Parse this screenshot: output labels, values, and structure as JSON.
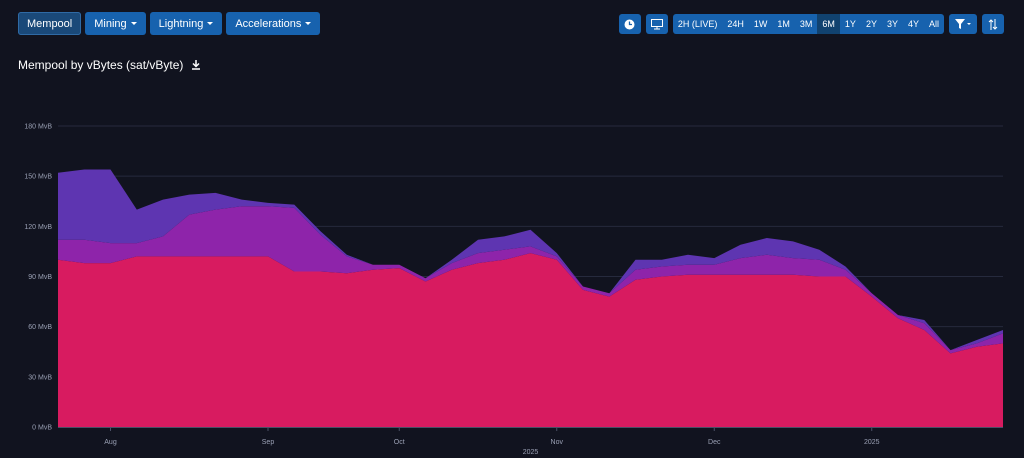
{
  "nav": {
    "items": [
      "Mempool",
      "Mining",
      "Lightning",
      "Accelerations"
    ],
    "active": "Mempool",
    "dropdowns": [
      "Mining",
      "Lightning",
      "Accelerations"
    ]
  },
  "toolbar": {
    "ranges": [
      "2H (LIVE)",
      "24H",
      "1W",
      "1M",
      "3M",
      "6M",
      "1Y",
      "2Y",
      "3Y",
      "4Y",
      "All"
    ],
    "active_range": "6M"
  },
  "chart_data": {
    "type": "stacked-area",
    "title": "Mempool by vBytes (sat/vByte)",
    "categories": [
      null,
      null,
      "Aug",
      null,
      null,
      null,
      null,
      null,
      "Sep",
      null,
      null,
      null,
      null,
      "Oct",
      null,
      null,
      null,
      null,
      null,
      "Nov",
      null,
      null,
      null,
      null,
      null,
      "Dec",
      null,
      null,
      null,
      null,
      null,
      "2025",
      null,
      null,
      null,
      null,
      null
    ],
    "x_label": "2025",
    "series": [
      {
        "color": "#d81b60",
        "values": [
          100,
          98,
          98,
          102,
          102,
          102,
          102,
          102,
          102,
          93,
          93,
          92,
          94,
          95,
          87,
          94,
          98,
          100,
          104,
          100,
          82,
          78,
          88,
          90,
          91,
          91,
          91,
          91,
          91,
          90,
          90,
          78,
          65,
          58,
          44,
          48,
          50
        ]
      },
      {
        "color": "#8e24aa",
        "values": [
          12,
          14,
          12,
          8,
          12,
          25,
          28,
          30,
          30,
          38,
          22,
          10,
          3,
          2,
          2,
          4,
          6,
          6,
          4,
          2,
          2,
          2,
          6,
          6,
          6,
          6,
          10,
          12,
          10,
          10,
          4,
          2,
          2,
          4,
          2,
          2,
          6
        ]
      },
      {
        "color": "#5e35b1",
        "values": [
          40,
          42,
          44,
          20,
          22,
          12,
          10,
          4,
          2,
          2,
          2,
          1,
          0,
          0,
          0,
          2,
          8,
          8,
          10,
          2,
          0,
          0,
          6,
          4,
          6,
          4,
          8,
          10,
          10,
          6,
          2,
          0,
          0,
          2,
          0,
          2,
          2
        ]
      }
    ],
    "ylim": [
      0,
      180
    ],
    "yticks": [
      {
        "value": 0,
        "label": "0 MvB"
      },
      {
        "value": 30,
        "label": "30 MvB"
      },
      {
        "value": 60,
        "label": "60 MvB"
      },
      {
        "value": 90,
        "label": "90 MvB"
      },
      {
        "value": 120,
        "label": "120 MvB"
      },
      {
        "value": 150,
        "label": "150 MvB"
      },
      {
        "value": 180,
        "label": "180 MvB"
      }
    ],
    "grid": true
  }
}
